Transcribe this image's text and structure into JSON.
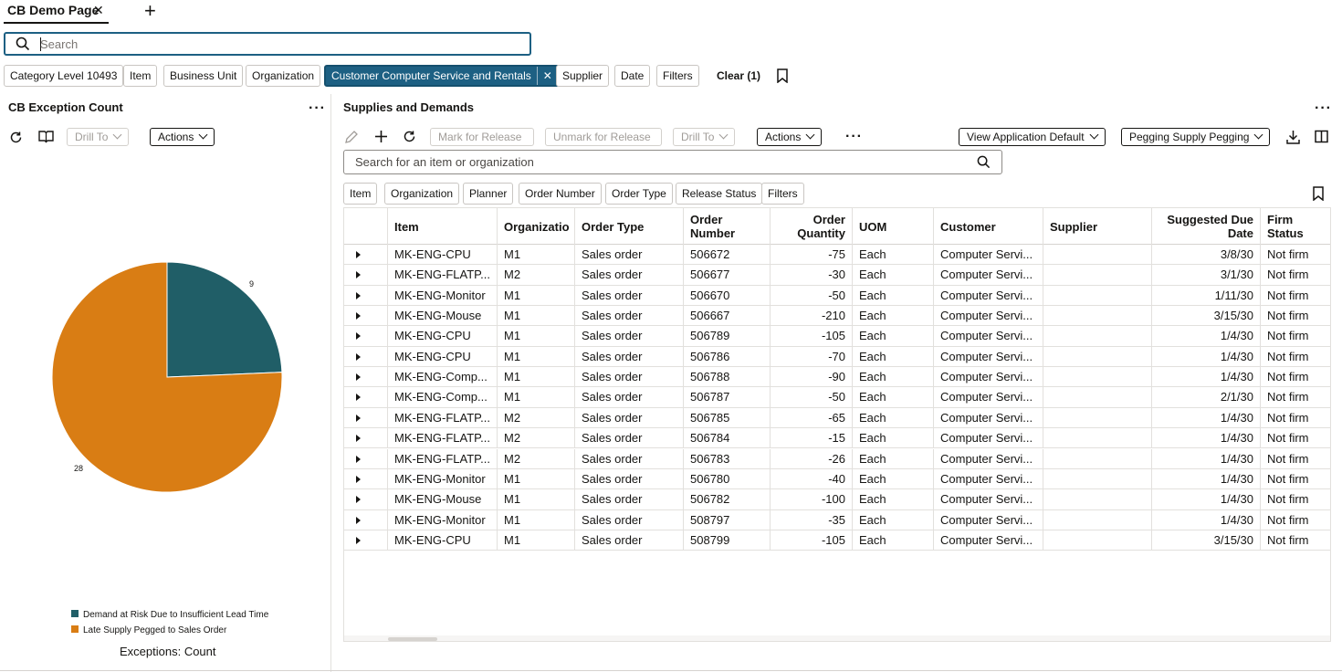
{
  "tab": {
    "title": "CB Demo Page",
    "close": "✕",
    "add": "+"
  },
  "search": {
    "placeholder": "Search"
  },
  "chips": [
    "Category Level 10493",
    "Item",
    "Business Unit",
    "Organization",
    "Customer Computer Service and Rentals",
    "Supplier",
    "Date",
    "Filters"
  ],
  "clear_label": "Clear (1)",
  "left_panel": {
    "title": "CB Exception Count",
    "drill_to": "Drill To",
    "actions": "Actions",
    "footer": "Exceptions: Count"
  },
  "chart_data": {
    "type": "pie",
    "title": "",
    "slices": [
      {
        "label": "Demand at Risk Due to Insufficient Lead Time",
        "value": 9,
        "color": "#205e67"
      },
      {
        "label": "Late Supply Pegged to Sales Order",
        "value": 28,
        "color": "#d97d14"
      }
    ],
    "legend_position": "bottom-left"
  },
  "right_panel": {
    "title": "Supplies and Demands",
    "mark_release": "Mark for Release",
    "unmark_release": "Unmark for Release",
    "drill_to": "Drill To",
    "actions": "Actions",
    "view_default": "View Application Default",
    "pegging": "Pegging Supply Pegging",
    "search_placeholder": "Search for an item or organization",
    "filters": [
      "Item",
      "Organization",
      "Planner",
      "Order Number",
      "Order Type",
      "Release Status",
      "Filters"
    ]
  },
  "table": {
    "headers": [
      "Item",
      "Organizatio",
      "Order Type",
      "Order Number",
      "Order Quantity",
      "UOM",
      "Customer",
      "Supplier",
      "Suggested Due Date",
      "Firm Status"
    ],
    "rows": [
      [
        "MK-ENG-CPU",
        "M1",
        "Sales order",
        "506672",
        "-75",
        "Each",
        "Computer Servi...",
        "",
        "3/8/30",
        "Not firm"
      ],
      [
        "MK-ENG-FLATP...",
        "M2",
        "Sales order",
        "506677",
        "-30",
        "Each",
        "Computer Servi...",
        "",
        "3/1/30",
        "Not firm"
      ],
      [
        "MK-ENG-Monitor",
        "M1",
        "Sales order",
        "506670",
        "-50",
        "Each",
        "Computer Servi...",
        "",
        "1/11/30",
        "Not firm"
      ],
      [
        "MK-ENG-Mouse",
        "M1",
        "Sales order",
        "506667",
        "-210",
        "Each",
        "Computer Servi...",
        "",
        "3/15/30",
        "Not firm"
      ],
      [
        "MK-ENG-CPU",
        "M1",
        "Sales order",
        "506789",
        "-105",
        "Each",
        "Computer Servi...",
        "",
        "1/4/30",
        "Not firm"
      ],
      [
        "MK-ENG-CPU",
        "M1",
        "Sales order",
        "506786",
        "-70",
        "Each",
        "Computer Servi...",
        "",
        "1/4/30",
        "Not firm"
      ],
      [
        "MK-ENG-Comp...",
        "M1",
        "Sales order",
        "506788",
        "-90",
        "Each",
        "Computer Servi...",
        "",
        "1/4/30",
        "Not firm"
      ],
      [
        "MK-ENG-Comp...",
        "M1",
        "Sales order",
        "506787",
        "-50",
        "Each",
        "Computer Servi...",
        "",
        "2/1/30",
        "Not firm"
      ],
      [
        "MK-ENG-FLATP...",
        "M2",
        "Sales order",
        "506785",
        "-65",
        "Each",
        "Computer Servi...",
        "",
        "1/4/30",
        "Not firm"
      ],
      [
        "MK-ENG-FLATP...",
        "M2",
        "Sales order",
        "506784",
        "-15",
        "Each",
        "Computer Servi...",
        "",
        "1/4/30",
        "Not firm"
      ],
      [
        "MK-ENG-FLATP...",
        "M2",
        "Sales order",
        "506783",
        "-26",
        "Each",
        "Computer Servi...",
        "",
        "1/4/30",
        "Not firm"
      ],
      [
        "MK-ENG-Monitor",
        "M1",
        "Sales order",
        "506780",
        "-40",
        "Each",
        "Computer Servi...",
        "",
        "1/4/30",
        "Not firm"
      ],
      [
        "MK-ENG-Mouse",
        "M1",
        "Sales order",
        "506782",
        "-100",
        "Each",
        "Computer Servi...",
        "",
        "1/4/30",
        "Not firm"
      ],
      [
        "MK-ENG-Monitor",
        "M1",
        "Sales order",
        "508797",
        "-35",
        "Each",
        "Computer Servi...",
        "",
        "1/4/30",
        "Not firm"
      ],
      [
        "MK-ENG-CPU",
        "M1",
        "Sales order",
        "508799",
        "-105",
        "Each",
        "Computer Servi...",
        "",
        "3/15/30",
        "Not firm"
      ]
    ]
  }
}
